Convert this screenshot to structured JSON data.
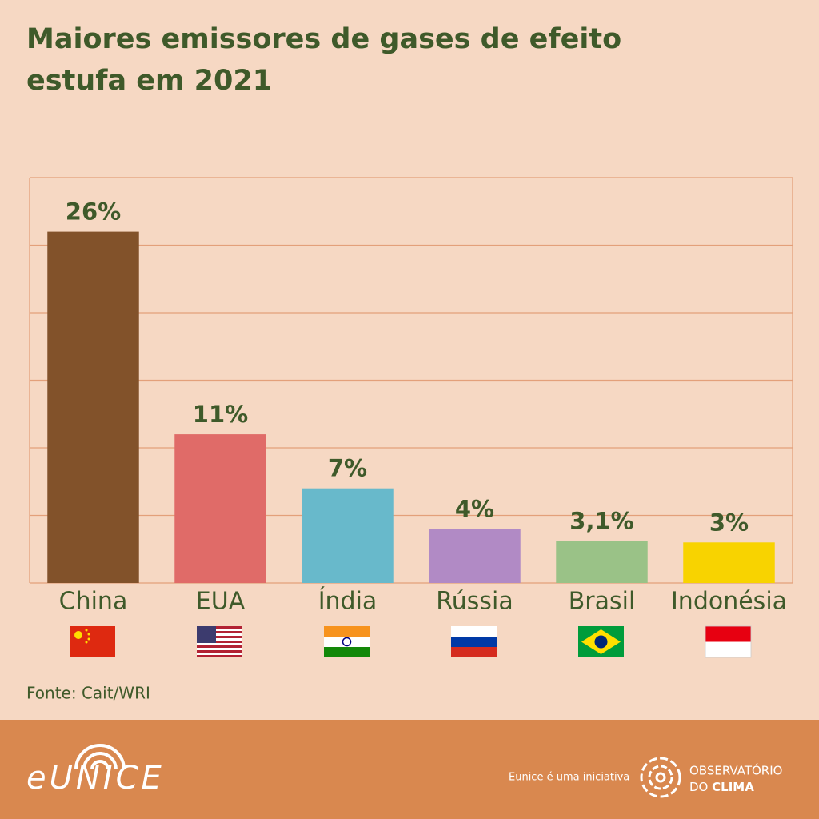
{
  "chart_data": {
    "type": "bar",
    "title": "Maiores emissores de gases de efeito estufa em 2021",
    "title_lines": [
      "Maiores emissores de gases de efeito",
      "estufa em 2021"
    ],
    "categories": [
      "China",
      "EUA",
      "Índia",
      "Rússia",
      "Brasil",
      "Indonésia"
    ],
    "values": [
      26,
      11,
      7,
      4,
      3.1,
      3
    ],
    "value_labels": [
      "26%",
      "11%",
      "7%",
      "4%",
      "3,1%",
      "3%"
    ],
    "colors": [
      "#82522a",
      "#e06b68",
      "#68b9cb",
      "#b18ac5",
      "#9ac287",
      "#f8d300"
    ],
    "ylim": [
      0,
      30
    ],
    "yticks": [
      0,
      5,
      10,
      15,
      20,
      25,
      30
    ],
    "grid": true,
    "source": "Fonte: Cait/WRI"
  },
  "footer": {
    "logo": "eUNICE",
    "tagline": "Eunice é uma iniciativa",
    "org_line1": "OBSERVATÓRIO",
    "org_line2_a": "DO ",
    "org_line2_b": "CLIMA"
  }
}
